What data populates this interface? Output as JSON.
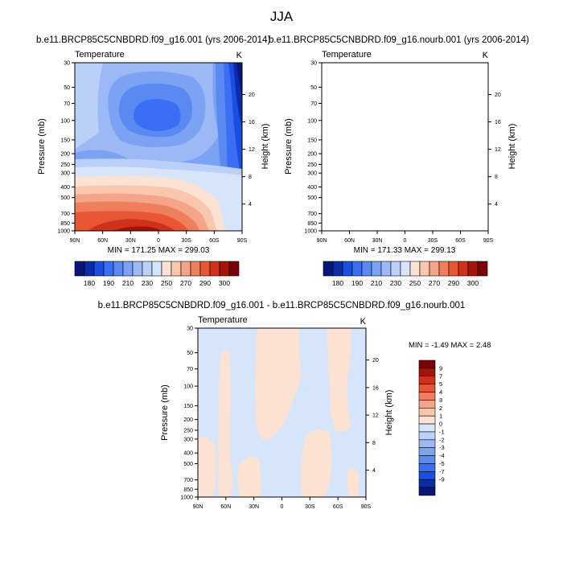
{
  "title": "JJA",
  "chart_data": [
    {
      "type": "heatmap",
      "title": "b.e11.BRCP85C5CNBDRD.f09_g16.001 (yrs 2006-2014)",
      "left_string": "Temperature",
      "right_string": "K",
      "xlabel": "",
      "ylabel": "Pressure (mb)",
      "ylabel_right": "Height (km)",
      "x_ticks": [
        "90N",
        "60N",
        "30N",
        "0",
        "30S",
        "60S",
        "90S"
      ],
      "y_ticks": [
        "30",
        "50",
        "70",
        "100",
        "150",
        "200",
        "250",
        "300",
        "400",
        "500",
        "700",
        "850",
        "1000"
      ],
      "y_ticks_right": [
        "20",
        "16",
        "12",
        "8",
        "4"
      ],
      "stats": "MIN = 171.25  MAX = 299.03",
      "min": 171.25,
      "max": 299.03,
      "colorbar_labels": [
        "180",
        "190",
        "210",
        "230",
        "250",
        "270",
        "290",
        "300"
      ]
    },
    {
      "type": "heatmap",
      "title": "b.e11.BRCP85C5CNBDRD.f09_g16.nourb.001 (yrs 2006-2014)",
      "left_string": "Temperature",
      "right_string": "K",
      "xlabel": "",
      "ylabel": "Pressure (mb)",
      "ylabel_right": "Height (km)",
      "x_ticks": [
        "90N",
        "60N",
        "30N",
        "0",
        "30S",
        "60S",
        "90S"
      ],
      "y_ticks": [
        "30",
        "50",
        "70",
        "100",
        "150",
        "200",
        "250",
        "300",
        "400",
        "500",
        "700",
        "850",
        "1000"
      ],
      "y_ticks_right": [
        "20",
        "16",
        "12",
        "8",
        "4"
      ],
      "stats": "MIN = 171.33  MAX = 299.13",
      "min": 171.33,
      "max": 299.13,
      "colorbar_labels": [
        "180",
        "190",
        "210",
        "230",
        "250",
        "270",
        "290",
        "300"
      ]
    },
    {
      "type": "heatmap",
      "title": "b.e11.BRCP85C5CNBDRD.f09_g16.001 - b.e11.BRCP85C5CNBDRD.f09_g16.nourb.001",
      "left_string": "Temperature",
      "right_string": "K",
      "xlabel": "",
      "ylabel": "Pressure (mb)",
      "ylabel_right": "Height (km)",
      "x_ticks": [
        "90N",
        "60N",
        "30N",
        "0",
        "30S",
        "60S",
        "90S"
      ],
      "y_ticks": [
        "30",
        "50",
        "70",
        "100",
        "150",
        "200",
        "250",
        "300",
        "400",
        "500",
        "700",
        "850",
        "1000"
      ],
      "y_ticks_right": [
        "20",
        "16",
        "12",
        "8",
        "4"
      ],
      "stats": "MIN = -1.49  MAX =  2.48",
      "min": -1.49,
      "max": 2.48,
      "colorbar_labels": [
        "9",
        "7",
        "5",
        "4",
        "3",
        "2",
        "1",
        "0",
        "-1",
        "-2",
        "-3",
        "-4",
        "-5",
        "-7",
        "-9"
      ]
    }
  ],
  "colors": {
    "temp_scale": [
      "#08157a",
      "#0a2ca8",
      "#1a4ee0",
      "#3a6ef5",
      "#5b89f2",
      "#7ca2f4",
      "#9cb9f6",
      "#bbd0f8",
      "#d7e5fb",
      "#fbe2d2",
      "#f8c7ae",
      "#f4a488",
      "#ef7e5c",
      "#e85634",
      "#d0311a",
      "#a41508",
      "#7a0303"
    ],
    "diff_scale": [
      "#7a0303",
      "#a41508",
      "#d0311a",
      "#e85634",
      "#ef7e5c",
      "#f4a488",
      "#f8c7ae",
      "#fbe2d2",
      "#d7e5fb",
      "#bbd0f8",
      "#9cb9f6",
      "#7ca2f4",
      "#5b89f2",
      "#3a6ef5",
      "#1a4ee0",
      "#0a2ca8",
      "#08157a"
    ]
  }
}
